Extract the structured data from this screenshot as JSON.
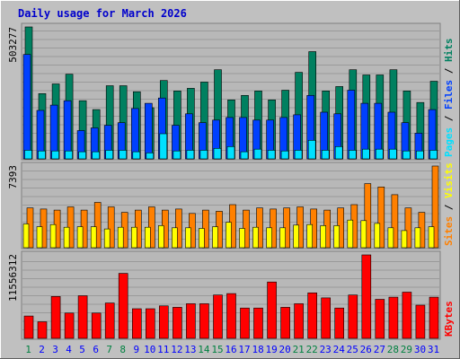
{
  "title": "Daily usage for March 2026",
  "colors": {
    "frame_bg": "#c0c0c0",
    "panel_bg": "#b8b8b8",
    "grid": "#9a9a9a",
    "title": "#0000cc",
    "hits": "#008060",
    "files": "#0040ff",
    "pages": "#00e0ff",
    "visits": "#ffff00",
    "sites": "#ff8000",
    "kbytes": "#ff0000",
    "weekday_label": "#0000ff",
    "weekend_label": "#008040"
  },
  "panels": {
    "top": {
      "ymax_label": "503277",
      "legend": [
        "Pages",
        "/",
        "Files",
        "/",
        "Hits"
      ],
      "legend_colors": [
        "pages",
        "text",
        "files",
        "text",
        "hits"
      ]
    },
    "mid": {
      "ymax_label": "7393",
      "legend": [
        "Sites",
        "/",
        "Visits"
      ],
      "legend_colors": [
        "sites",
        "text",
        "visits"
      ]
    },
    "bot": {
      "ymax_label": "11556312",
      "legend": [
        "KBytes"
      ],
      "legend_colors": [
        "kbytes"
      ]
    }
  },
  "chart_data": {
    "type": "bar",
    "title": "Daily usage for March 2026",
    "x": [
      "1",
      "2",
      "3",
      "4",
      "5",
      "6",
      "7",
      "8",
      "9",
      "10",
      "11",
      "12",
      "13",
      "14",
      "15",
      "16",
      "17",
      "18",
      "19",
      "20",
      "21",
      "22",
      "23",
      "24",
      "25",
      "26",
      "27",
      "28",
      "29",
      "30",
      "31"
    ],
    "weekend_days": [
      "1",
      "7",
      "8",
      "14",
      "15",
      "21",
      "22",
      "28",
      "29"
    ],
    "top_ymax": 503277,
    "mid_ymax": 7393,
    "bot_ymax": 11556312,
    "series": [
      {
        "name": "Hits",
        "values": [
          503277,
          249000,
          286000,
          323000,
          222000,
          188000,
          279000,
          279000,
          256000,
          195000,
          299000,
          259000,
          269000,
          293000,
          340000,
          225000,
          242000,
          259000,
          225000,
          262000,
          330000,
          409000,
          259000,
          276000,
          340000,
          320000,
          320000,
          340000,
          259000,
          215000,
          296000
        ]
      },
      {
        "name": "Files",
        "values": [
          398000,
          185000,
          205000,
          222000,
          108000,
          118000,
          128000,
          138000,
          192000,
          212000,
          232000,
          128000,
          172000,
          138000,
          148000,
          158000,
          158000,
          148000,
          148000,
          158000,
          168000,
          242000,
          178000,
          172000,
          262000,
          212000,
          212000,
          178000,
          138000,
          98000,
          188000
        ]
      },
      {
        "name": "Pages",
        "values": [
          33000,
          30000,
          30000,
          30000,
          27000,
          27000,
          33000,
          33000,
          27000,
          23000,
          96000,
          30000,
          33000,
          33000,
          40000,
          47000,
          27000,
          37000,
          33000,
          30000,
          33000,
          71000,
          33000,
          47000,
          33000,
          37000,
          37000,
          37000,
          30000,
          30000,
          33000
        ]
      },
      {
        "name": "Visits",
        "values": [
          2150,
          1900,
          2100,
          1850,
          1900,
          1900,
          1700,
          1850,
          1850,
          1850,
          2000,
          1800,
          1800,
          1750,
          1900,
          2300,
          1750,
          1850,
          1800,
          1800,
          2050,
          2100,
          2000,
          2000,
          2500,
          2450,
          2200,
          1800,
          1550,
          1800,
          1900
        ]
      },
      {
        "name": "Sites",
        "values": [
          3600,
          3500,
          3400,
          3700,
          3400,
          4100,
          3700,
          3200,
          3400,
          3700,
          3400,
          3500,
          3100,
          3400,
          3300,
          3900,
          3400,
          3600,
          3500,
          3600,
          3700,
          3500,
          3400,
          3600,
          3900,
          5800,
          5500,
          4800,
          3600,
          3200,
          7393
        ]
      },
      {
        "name": "KBytes",
        "values": [
          3100000,
          2300000,
          5800000,
          3500000,
          5900000,
          3500000,
          4900000,
          9000000,
          4100000,
          4100000,
          4500000,
          4300000,
          4800000,
          4800000,
          6000000,
          6200000,
          4200000,
          4200000,
          7800000,
          4300000,
          4800000,
          6300000,
          5600000,
          4200000,
          6000000,
          11556312,
          5400000,
          5700000,
          6400000,
          4600000,
          5700000
        ]
      }
    ]
  }
}
